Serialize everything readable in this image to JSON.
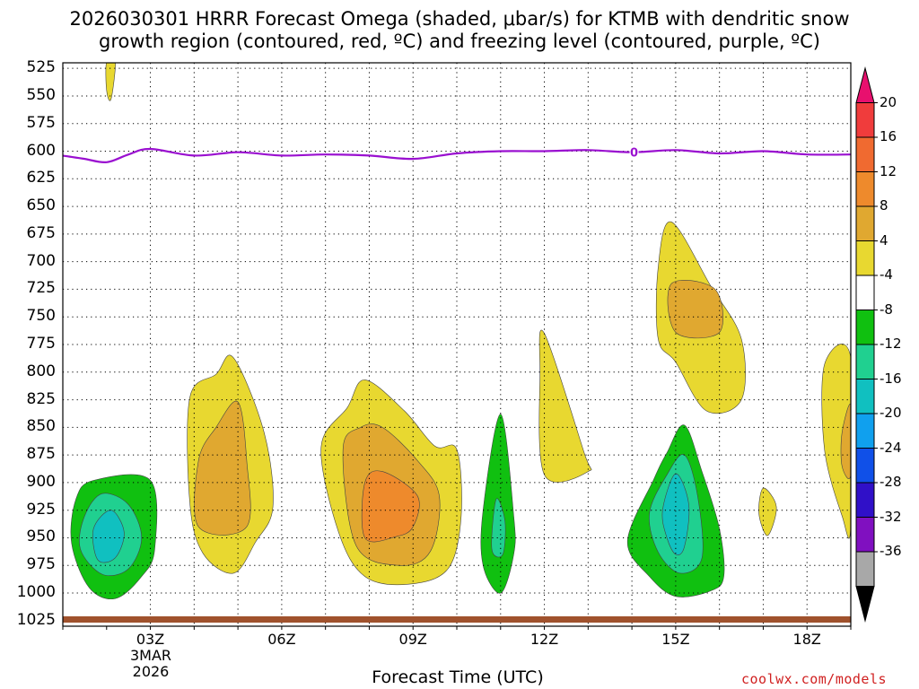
{
  "chart_data": {
    "type": "heatmap",
    "title_line1": "2026030301 HRRR Forecast Omega (shaded, μbar/s) for KTMB with dendritic snow",
    "title_line2": "growth region (contoured, red, ºC) and freezing level (contoured, purple, ºC)",
    "xlabel": "Forecast Time (UTC)",
    "ylabel": "",
    "x_ticks": [
      "03Z",
      "06Z",
      "09Z",
      "12Z",
      "15Z",
      "18Z"
    ],
    "x_tick_hours": [
      3,
      6,
      9,
      12,
      15,
      18
    ],
    "x_range_hours": [
      1,
      19
    ],
    "date_label": [
      "3MAR",
      "2026"
    ],
    "y_ticks": [
      "525",
      "550",
      "575",
      "600",
      "625",
      "650",
      "675",
      "700",
      "725",
      "750",
      "775",
      "800",
      "825",
      "850",
      "875",
      "900",
      "925",
      "950",
      "975",
      "1000",
      "1025"
    ],
    "y_range_mb": [
      520,
      1030
    ],
    "colorbar": {
      "labels": [
        "20",
        "16",
        "12",
        "8",
        "4",
        "-4",
        "-8",
        "-12",
        "-16",
        "-20",
        "-24",
        "-28",
        "-32",
        "-36"
      ],
      "colors": [
        "#e8106e",
        "#f03c3c",
        "#f06a30",
        "#ee8a2c",
        "#e0a830",
        "#e8d830",
        "#ffffff",
        "#10c010",
        "#20d090",
        "#10c0c0",
        "#10a0ee",
        "#1050e8",
        "#3010c8",
        "#8010c0",
        "#a8a8a8",
        "#000000"
      ]
    },
    "freezing_level": {
      "label": "0",
      "hours": [
        1,
        1.5,
        2,
        2.5,
        3,
        4,
        5,
        6,
        7,
        8,
        9,
        10,
        11,
        12,
        13,
        14,
        15,
        16,
        17,
        18,
        19
      ],
      "pressure_mb": [
        604,
        607,
        610,
        603,
        598,
        604,
        601,
        604,
        603,
        604,
        607,
        602,
        600,
        600,
        599,
        601,
        599,
        602,
        600,
        603,
        603
      ]
    },
    "omega_regions": [
      {
        "level": "4 to 8",
        "color": "#e8d830",
        "points": [
          [
            2.0,
            519
          ],
          [
            2.2,
            519
          ],
          [
            2.1,
            553
          ],
          [
            2.0,
            545
          ]
        ]
      },
      {
        "level": "4 to 8",
        "color": "#e8d830",
        "points": [
          [
            3.9,
            823
          ],
          [
            4.5,
            802
          ],
          [
            4.9,
            787
          ],
          [
            5.6,
            855
          ],
          [
            5.8,
            922
          ],
          [
            5.4,
            954
          ],
          [
            4.9,
            982
          ],
          [
            4.2,
            964
          ],
          [
            3.9,
            918
          ]
        ]
      },
      {
        "level": "8 to 12",
        "color": "#e0a830",
        "points": [
          [
            4.1,
            880
          ],
          [
            4.5,
            850
          ],
          [
            5.0,
            827
          ],
          [
            5.2,
            880
          ],
          [
            5.2,
            940
          ],
          [
            4.1,
            940
          ]
        ]
      },
      {
        "level": "4 to 8",
        "color": "#e8d830",
        "points": [
          [
            6.9,
            868
          ],
          [
            7.5,
            832
          ],
          [
            7.9,
            807
          ],
          [
            8.8,
            835
          ],
          [
            9.5,
            867
          ],
          [
            10.0,
            870
          ],
          [
            10.1,
            930
          ],
          [
            9.8,
            978
          ],
          [
            8.9,
            992
          ],
          [
            7.9,
            985
          ],
          [
            7.3,
            945
          ]
        ]
      },
      {
        "level": "8 to 12",
        "color": "#e0a830",
        "points": [
          [
            7.4,
            870
          ],
          [
            7.8,
            850
          ],
          [
            8.3,
            850
          ],
          [
            9.1,
            880
          ],
          [
            9.6,
            912
          ],
          [
            9.4,
            962
          ],
          [
            8.7,
            975
          ],
          [
            7.7,
            957
          ]
        ]
      },
      {
        "level": "12 to 16",
        "color": "#ee8a2c",
        "points": [
          [
            7.9,
            900
          ],
          [
            8.3,
            890
          ],
          [
            9.1,
            912
          ],
          [
            9.0,
            940
          ],
          [
            8.6,
            949
          ],
          [
            7.9,
            950
          ]
        ]
      },
      {
        "level": "4 to 8",
        "color": "#e8d830",
        "points": [
          [
            11.9,
            800
          ],
          [
            12.0,
            765
          ],
          [
            12.9,
            872
          ],
          [
            13.0,
            890
          ],
          [
            12.0,
            893
          ]
        ]
      },
      {
        "level": "4 to 8",
        "color": "#e8d830",
        "points": [
          [
            14.6,
            705
          ],
          [
            14.9,
            664
          ],
          [
            15.8,
            722
          ],
          [
            16.5,
            770
          ],
          [
            16.5,
            825
          ],
          [
            15.7,
            835
          ],
          [
            15.0,
            791
          ],
          [
            14.6,
            770
          ]
        ]
      },
      {
        "level": "8 to 12",
        "color": "#e0a830",
        "points": [
          [
            14.9,
            720
          ],
          [
            15.9,
            725
          ],
          [
            16.0,
            764
          ],
          [
            15.0,
            764
          ]
        ]
      },
      {
        "level": "4 to 8",
        "color": "#e8d830",
        "points": [
          [
            16.9,
            928
          ],
          [
            17.0,
            905
          ],
          [
            17.3,
            922
          ],
          [
            17.1,
            948
          ]
        ]
      },
      {
        "level": "4 to 8",
        "color": "#e8d830",
        "points": [
          [
            19.0,
            787
          ],
          [
            18.4,
            793
          ],
          [
            18.4,
            870
          ],
          [
            18.8,
            930
          ],
          [
            19.0,
            940
          ]
        ]
      },
      {
        "level": "8 to 12",
        "color": "#e0a830",
        "points": [
          [
            19.0,
            830
          ],
          [
            18.8,
            855
          ],
          [
            18.8,
            885
          ],
          [
            19.0,
            893
          ]
        ]
      },
      {
        "level": "-4 to -8",
        "color": "#10c010",
        "points": [
          [
            1.3,
            915
          ],
          [
            1.7,
            898
          ],
          [
            3.0,
            898
          ],
          [
            3.1,
            960
          ],
          [
            2.8,
            985
          ],
          [
            2.2,
            1005
          ],
          [
            1.6,
            995
          ],
          [
            1.2,
            955
          ]
        ]
      },
      {
        "level": "-8 to -12",
        "color": "#20d090",
        "points": [
          [
            1.5,
            930
          ],
          [
            1.9,
            910
          ],
          [
            2.5,
            920
          ],
          [
            2.8,
            950
          ],
          [
            2.5,
            978
          ],
          [
            1.9,
            983
          ],
          [
            1.4,
            960
          ]
        ]
      },
      {
        "level": "-12 to -16",
        "color": "#10c0c0",
        "points": [
          [
            1.7,
            942
          ],
          [
            2.1,
            925
          ],
          [
            2.4,
            945
          ],
          [
            2.2,
            968
          ],
          [
            1.8,
            970
          ]
        ]
      },
      {
        "level": "-4 to -8",
        "color": "#10c010",
        "points": [
          [
            11.0,
            838
          ],
          [
            11.3,
            930
          ],
          [
            11.3,
            965
          ],
          [
            11.0,
            1000
          ],
          [
            10.6,
            975
          ],
          [
            10.6,
            925
          ]
        ]
      },
      {
        "level": "-8 to -12",
        "color": "#20d090",
        "points": [
          [
            10.9,
            915
          ],
          [
            11.1,
            935
          ],
          [
            11.05,
            965
          ],
          [
            10.8,
            960
          ]
        ]
      },
      {
        "level": "-4 to -8",
        "color": "#10c010",
        "points": [
          [
            13.9,
            953
          ],
          [
            14.5,
            897
          ],
          [
            14.8,
            873
          ],
          [
            15.2,
            848
          ],
          [
            15.6,
            890
          ],
          [
            16.0,
            942
          ],
          [
            16.1,
            985
          ],
          [
            15.8,
            998
          ],
          [
            15.0,
            1003
          ],
          [
            14.4,
            985
          ]
        ]
      },
      {
        "level": "-8 to -12",
        "color": "#20d090",
        "points": [
          [
            14.4,
            928
          ],
          [
            14.8,
            893
          ],
          [
            15.2,
            875
          ],
          [
            15.5,
            912
          ],
          [
            15.6,
            968
          ],
          [
            15.1,
            982
          ],
          [
            14.6,
            963
          ]
        ]
      },
      {
        "level": "-12 to -16",
        "color": "#10c0c0",
        "points": [
          [
            14.7,
            925
          ],
          [
            15.0,
            892
          ],
          [
            15.3,
            920
          ],
          [
            15.2,
            958
          ],
          [
            15.0,
            965
          ],
          [
            14.8,
            950
          ]
        ]
      }
    ],
    "surface_color": "#a0522d"
  },
  "credit": "coolwx.com/models"
}
